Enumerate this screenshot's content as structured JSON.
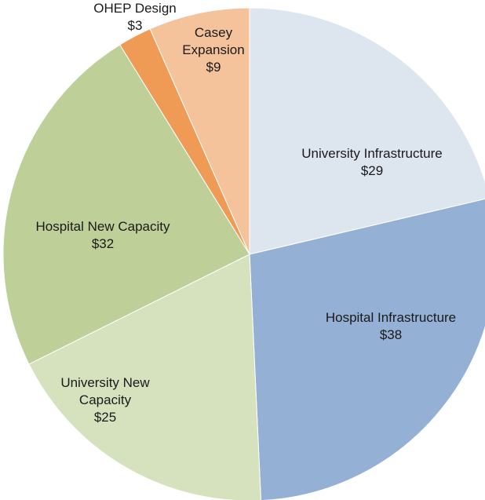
{
  "chart_data": {
    "type": "pie",
    "slices": [
      {
        "label": "University Infrastructure",
        "display": [
          "University Infrastructure",
          "$29"
        ],
        "value": 29,
        "color": "#dde5ef"
      },
      {
        "label": "Hospital Infrastructure",
        "display": [
          "Hospital Infrastructure",
          "$38"
        ],
        "value": 38,
        "color": "#95b0d5"
      },
      {
        "label": "University New Capacity",
        "display": [
          "University New",
          "Capacity",
          "$25"
        ],
        "value": 25,
        "color": "#d6e2bd"
      },
      {
        "label": "Hospital New Capacity",
        "display": [
          "Hospital New Capacity",
          "$32"
        ],
        "value": 32,
        "color": "#bfcf98"
      },
      {
        "label": "OHEP Design",
        "display": [
          "OHEP Design",
          "$3"
        ],
        "value": 3,
        "color": "#ef9a55"
      },
      {
        "label": "Casey Expansion",
        "display": [
          "Casey",
          "Expansion",
          "$9"
        ],
        "value": 9,
        "color": "#f4c29b"
      }
    ],
    "start_angle": "12 o'clock",
    "direction": "clockwise",
    "legend": "none",
    "units": "$"
  }
}
